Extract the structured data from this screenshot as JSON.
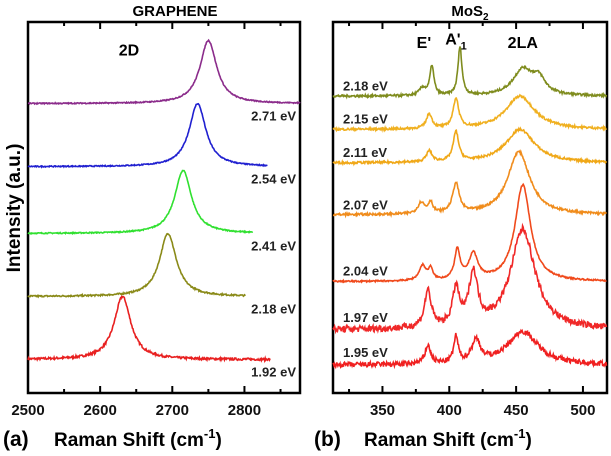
{
  "chart_data": [
    {
      "type": "line",
      "panel_label": "(a)",
      "title": "GRAPHENE",
      "xlabel": "Raman Shift (cm",
      "xlabel_sup": "-1",
      "xlabel_end": ")",
      "ylabel": "Intensity (a.u.)",
      "xlim": [
        2500,
        2877
      ],
      "ylim": [
        0,
        100
      ],
      "xticks": [
        2500,
        2600,
        2700,
        2800
      ],
      "xtick_labels": [
        "2500",
        "2600",
        "2700",
        "2800"
      ],
      "annotations": [
        {
          "text": "2D",
          "x": 2640,
          "y": 91
        }
      ],
      "series": [
        {
          "name": "1.92 eV",
          "color": "#e82020",
          "offset": 9,
          "xrange": [
            2500,
            2836
          ],
          "peaks": [
            [
              2631,
              17,
              14
            ]
          ],
          "noise": 0.3
        },
        {
          "name": "2.18 eV",
          "color": "#8a8a18",
          "offset": 26,
          "xrange": [
            2500,
            2802
          ],
          "peaks": [
            [
              2694,
              17,
              14
            ]
          ],
          "noise": 0.2
        },
        {
          "name": "2.41 eV",
          "color": "#30e030",
          "offset": 43,
          "xrange": [
            2500,
            2812
          ],
          "peaks": [
            [
              2715,
              17,
              14
            ]
          ],
          "noise": 0.15
        },
        {
          "name": "2.54 eV",
          "color": "#2020d0",
          "offset": 61,
          "xrange": [
            2500,
            2832
          ],
          "peaks": [
            [
              2735,
              17,
              14
            ]
          ],
          "noise": 0.15
        },
        {
          "name": "2.71 eV",
          "color": "#8b2c8b",
          "offset": 78,
          "xrange": [
            2500,
            2877
          ],
          "peaks": [
            [
              2750,
              17,
              14
            ]
          ],
          "noise": 0.15
        }
      ]
    },
    {
      "type": "line",
      "panel_label": "(b)",
      "title": "MoS",
      "title_sub": "2",
      "xlabel": "Raman Shift (cm",
      "xlabel_sup": "-1",
      "xlabel_end": ")",
      "xlim": [
        313,
        518
      ],
      "ylim": [
        0,
        100
      ],
      "xticks": [
        350,
        400,
        450,
        500
      ],
      "xtick_labels": [
        "350",
        "400",
        "450",
        "500"
      ],
      "annotations": [
        {
          "text": "E'",
          "x": 381,
          "y": 93
        },
        {
          "text": "A'",
          "sub": "1",
          "x": 405,
          "y": 94
        },
        {
          "text": "2LA",
          "x": 455,
          "y": 93
        }
      ],
      "series": [
        {
          "name": "2.18 eV",
          "color": "#7f8c1e",
          "offset": 80,
          "peaks": [
            [
              380,
              2,
              3
            ],
            [
              387,
              8,
              1.8
            ],
            [
              408,
              13,
              1.8
            ],
            [
              455,
              7,
              9
            ],
            [
              467,
              4,
              6
            ]
          ],
          "noise": 0.3
        },
        {
          "name": "2.15 eV",
          "color": "#f0b020",
          "offset": 71,
          "peaks": [
            [
              385,
              4,
              2.5
            ],
            [
              405,
              8,
              2.5
            ],
            [
              453,
              9,
              13
            ]
          ],
          "noise": 0.3
        },
        {
          "name": "2.11 eV",
          "color": "#f0a818",
          "offset": 62,
          "peaks": [
            [
              385,
              3,
              2.5
            ],
            [
              405,
              8,
              2.5
            ],
            [
              453,
              9,
              13
            ]
          ],
          "noise": 0.3
        },
        {
          "name": "2.07 eV",
          "color": "#f08c1c",
          "offset": 48,
          "peaks": [
            [
              379,
              3,
              3
            ],
            [
              386,
              3,
              2
            ],
            [
              405,
              8,
              3
            ],
            [
              452,
              17,
              10
            ]
          ],
          "noise": 0.3
        },
        {
          "name": "2.04 eV",
          "color": "#f04a1c",
          "offset": 30,
          "peaks": [
            [
              380,
              4,
              3
            ],
            [
              386,
              3,
              2
            ],
            [
              406,
              8,
              2.5
            ],
            [
              418,
              7,
              4
            ],
            [
              455,
              26,
              7
            ]
          ],
          "noise": 0.2
        },
        {
          "name": "1.97 eV",
          "color": "#f02828",
          "offset": 17,
          "peaks": [
            [
              384,
              10,
              3
            ],
            [
              405,
              10,
              3
            ],
            [
              418,
              14,
              4
            ],
            [
              455,
              27,
              11
            ]
          ],
          "noise": 0.9
        },
        {
          "name": "1.95 eV",
          "color": "#f02020",
          "offset": 7.5,
          "peaks": [
            [
              384,
              5,
              2.5
            ],
            [
              405,
              7,
              2
            ],
            [
              420,
              6,
              4
            ],
            [
              455,
              9,
              14
            ]
          ],
          "noise": 0.7
        }
      ]
    }
  ]
}
